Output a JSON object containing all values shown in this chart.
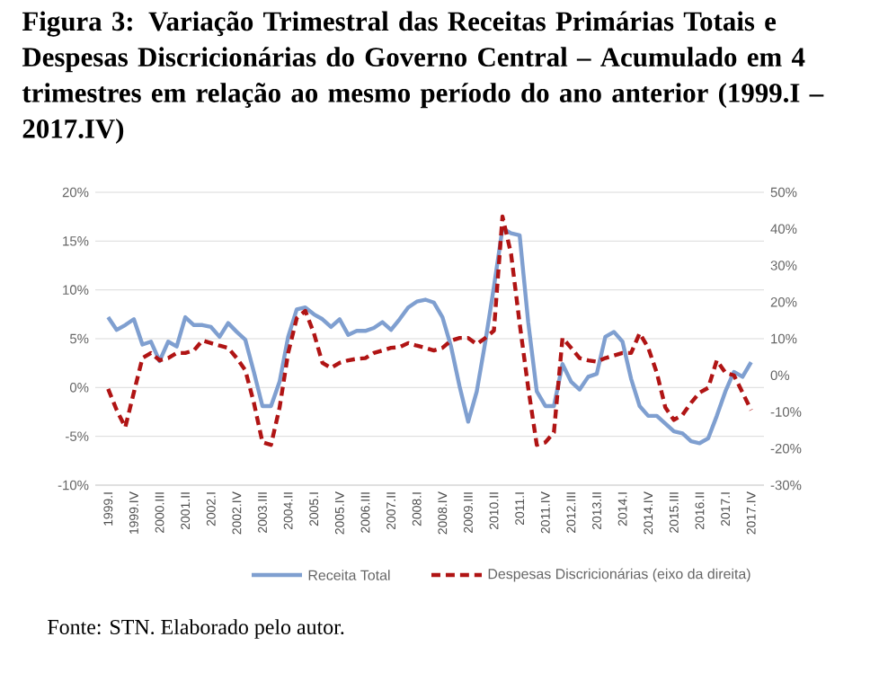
{
  "chart_data": {
    "type": "line",
    "title": "Figura 3: Variação Trimestral das Receitas Primárias Totais e Despesas Discricionárias do Governo Central – Acumulado em 4 trimestres em relação ao mesmo período do ano anterior (1999.I – 2017.IV)",
    "categories": [
      "1999.I",
      null,
      null,
      "1999.IV",
      null,
      null,
      "2000.III",
      null,
      null,
      "2001.II",
      null,
      null,
      "2002.I",
      null,
      null,
      "2002.IV",
      null,
      null,
      "2003.III",
      null,
      null,
      "2004.II",
      null,
      null,
      "2005.I",
      null,
      null,
      "2005.IV",
      null,
      null,
      "2006.III",
      null,
      null,
      "2007.II",
      null,
      null,
      "2008.I",
      null,
      null,
      "2008.IV",
      null,
      null,
      "2009.III",
      null,
      null,
      "2010.II",
      null,
      null,
      "2011.I",
      null,
      null,
      "2011.IV",
      null,
      null,
      "2012.III",
      null,
      null,
      "2013.II",
      null,
      null,
      "2014.I",
      null,
      null,
      "2014.IV",
      null,
      null,
      "2015.III",
      null,
      null,
      "2016.II",
      null,
      null,
      "2017.I",
      null,
      null,
      "2017.IV"
    ],
    "series": [
      {
        "name": "Receita Total",
        "color": "#7f9fd0",
        "line_style": "solid",
        "values": [
          7.2,
          5.9,
          6.4,
          7.0,
          4.4,
          4.7,
          2.7,
          4.7,
          4.2,
          7.2,
          6.4,
          6.4,
          6.2,
          5.2,
          6.6,
          5.7,
          4.9,
          1.6,
          -1.9,
          -1.9,
          0.6,
          5.2,
          8.0,
          8.2,
          7.5,
          7.0,
          6.2,
          7.0,
          5.4,
          5.8,
          5.8,
          6.1,
          6.7,
          5.9,
          7.0,
          8.2,
          8.8,
          9.0,
          8.7,
          7.2,
          4.2,
          0.1,
          -3.5,
          -0.4,
          4.7,
          10.3,
          16.3,
          15.8,
          15.6,
          6.7,
          -0.4,
          -1.9,
          -1.9,
          2.4,
          0.6,
          -0.2,
          1.1,
          1.4,
          5.2,
          5.7,
          4.7,
          0.9,
          -1.9,
          -2.9,
          -2.9,
          -3.7,
          -4.5,
          -4.7,
          -5.5,
          -5.7,
          -5.2,
          -2.9,
          -0.4,
          1.6,
          1.1,
          2.6
        ]
      },
      {
        "name": "Despesas Discricionárias (eixo da direita)",
        "color": "#b01414",
        "line_style": "dashed",
        "axis": "y2",
        "values": [
          -3.7,
          -9.5,
          -14.2,
          -4.7,
          4.7,
          6.1,
          4.1,
          4.7,
          6.1,
          6.1,
          6.8,
          9.5,
          8.8,
          8.1,
          7.5,
          4.7,
          1.4,
          -7.5,
          -18.3,
          -19.0,
          -8.8,
          6.1,
          15.6,
          17.6,
          11.5,
          3.4,
          2.0,
          3.4,
          4.1,
          4.5,
          4.7,
          6.1,
          6.8,
          7.5,
          7.7,
          8.8,
          8.1,
          7.5,
          6.8,
          7.5,
          9.5,
          10.2,
          10.2,
          8.5,
          10.2,
          12.2,
          43.4,
          33.2,
          14.2,
          -3.4,
          -19.0,
          -18.3,
          -15.6,
          10.2,
          7.5,
          4.7,
          4.1,
          3.7,
          4.7,
          5.4,
          6.1,
          6.1,
          11.5,
          7.5,
          0.7,
          -8.8,
          -12.2,
          -10.8,
          -7.5,
          -4.7,
          -3.4,
          4.1,
          0.7,
          0.0,
          -4.7,
          -9.5
        ]
      }
    ],
    "ylim": [
      -10,
      20
    ],
    "yticks": [
      {
        "value": -10,
        "label": "-10%"
      },
      {
        "value": -5,
        "label": "-5%"
      },
      {
        "value": 0,
        "label": "0%"
      },
      {
        "value": 5,
        "label": "5%"
      },
      {
        "value": 10,
        "label": "10%"
      },
      {
        "value": 15,
        "label": "15%"
      },
      {
        "value": 20,
        "label": "20%"
      }
    ],
    "y2lim": [
      -30,
      50
    ],
    "y2ticks": [
      {
        "value": -30,
        "label": "-30%"
      },
      {
        "value": -20,
        "label": "-20%"
      },
      {
        "value": -10,
        "label": "-10%"
      },
      {
        "value": 0,
        "label": "0%"
      },
      {
        "value": 10,
        "label": "10%"
      },
      {
        "value": 20,
        "label": "20%"
      },
      {
        "value": 30,
        "label": "30%"
      },
      {
        "value": 40,
        "label": "40%"
      },
      {
        "value": 50,
        "label": "50%"
      }
    ],
    "grid": "y",
    "legend": "bottom",
    "annotations": [
      "Fonte: STN. Elaborado pelo autor."
    ]
  }
}
